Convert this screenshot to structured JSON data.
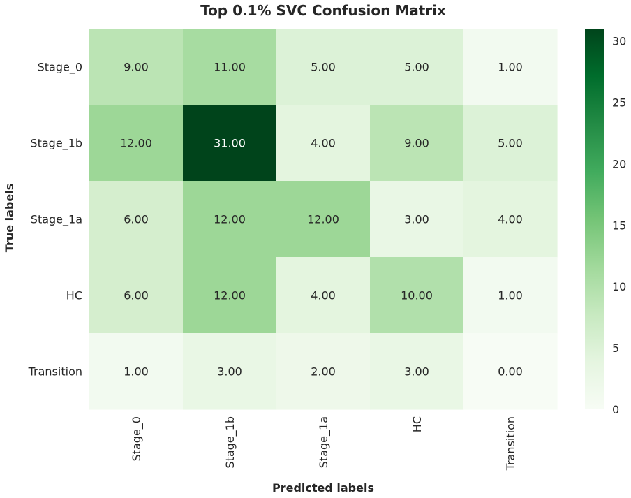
{
  "chart_data": {
    "type": "heatmap",
    "title": "Top 0.1% SVC Confusion Matrix",
    "xlabel": "Predicted labels",
    "ylabel": "True labels",
    "x_categories": [
      "Stage_0",
      "Stage_1b",
      "Stage_1a",
      "HC",
      "Transition"
    ],
    "y_categories": [
      "Stage_0",
      "Stage_1b",
      "Stage_1a",
      "HC",
      "Transition"
    ],
    "values": [
      [
        9,
        11,
        5,
        5,
        1
      ],
      [
        12,
        31,
        4,
        9,
        5
      ],
      [
        6,
        12,
        12,
        3,
        4
      ],
      [
        6,
        12,
        4,
        10,
        1
      ],
      [
        1,
        3,
        2,
        3,
        0
      ]
    ],
    "value_labels": [
      [
        "9.00",
        "11.00",
        "5.00",
        "5.00",
        "1.00"
      ],
      [
        "12.00",
        "31.00",
        "4.00",
        "9.00",
        "5.00"
      ],
      [
        "6.00",
        "12.00",
        "12.00",
        "3.00",
        "4.00"
      ],
      [
        "6.00",
        "12.00",
        "4.00",
        "10.00",
        "1.00"
      ],
      [
        "1.00",
        "3.00",
        "2.00",
        "3.00",
        "0.00"
      ]
    ],
    "colormap": "Greens",
    "color_range": [
      0,
      31
    ],
    "colorbar_ticks": [
      0,
      5,
      10,
      15,
      20,
      25,
      30
    ],
    "colorbar_tick_labels": [
      "0",
      "5",
      "10",
      "15",
      "20",
      "25",
      "30"
    ],
    "colors": {
      "low": "#f7fcf5",
      "high": "#00441b",
      "text_dark": "#262626",
      "text_light": "#ffffff"
    }
  }
}
